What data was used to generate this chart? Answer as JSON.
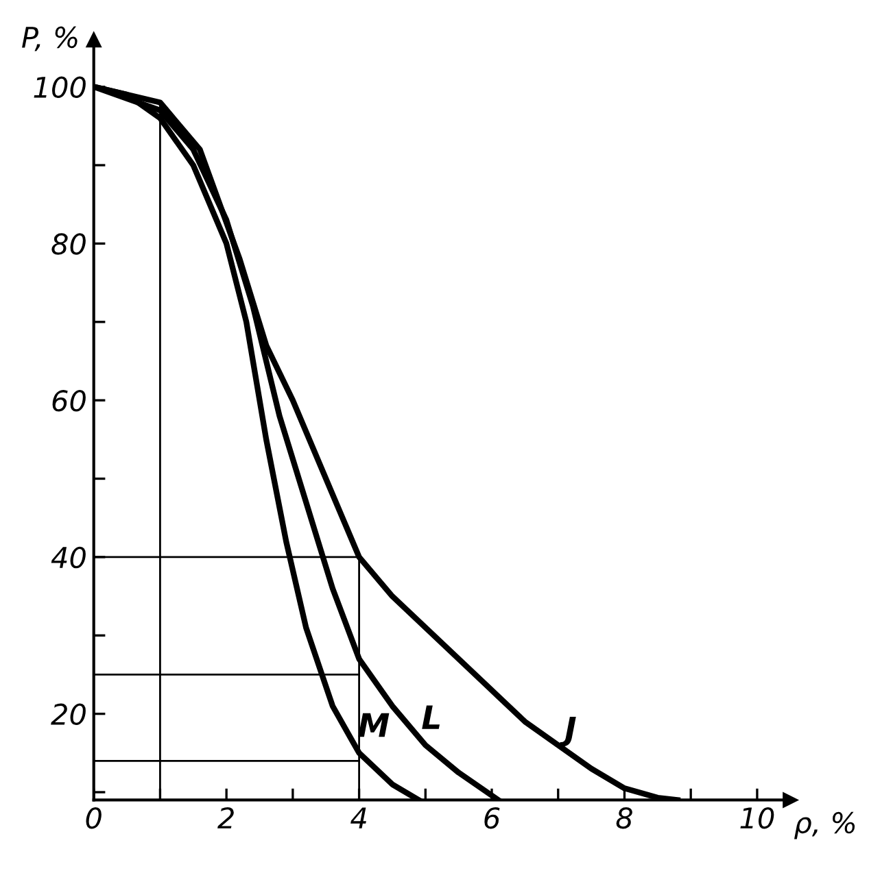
{
  "chart_data": {
    "type": "line",
    "xlabel": "ρ, %",
    "ylabel": "P, %",
    "xlim": [
      0,
      10.5
    ],
    "ylim": [
      9,
      106
    ],
    "xticks": [
      0,
      {
        "value": 1,
        "label": null
      },
      2,
      {
        "value": 3,
        "label": null
      },
      4,
      {
        "value": 5,
        "label": null
      },
      6,
      {
        "value": 7,
        "label": null
      },
      8,
      {
        "value": 9,
        "label": null
      },
      10
    ],
    "yticks": [
      {
        "value": 10,
        "label": null
      },
      20,
      {
        "value": 30,
        "label": null
      },
      40,
      {
        "value": 50,
        "label": null
      },
      60,
      {
        "value": 70,
        "label": null
      },
      80,
      {
        "value": 90,
        "label": null
      },
      100
    ],
    "grid": false,
    "legend": false,
    "marker": "none",
    "line_style": "solid",
    "series": [
      {
        "name": "M",
        "color": "#000000",
        "x": [
          0,
          0.5,
          1,
          1.5,
          2,
          2.3,
          2.6,
          2.9,
          3.2,
          3.6,
          4,
          4.5,
          4.9
        ],
        "values": [
          100,
          99,
          96,
          90,
          80,
          70,
          55,
          42,
          31,
          21,
          15,
          11,
          9
        ]
      },
      {
        "name": "L",
        "color": "#000000",
        "x": [
          0,
          1,
          1.5,
          2,
          2.4,
          2.8,
          3.2,
          3.6,
          4,
          4.5,
          5,
          5.5,
          6.1
        ],
        "values": [
          100,
          97,
          92,
          83,
          72,
          58,
          47,
          36,
          27,
          21,
          16,
          12.5,
          9
        ]
      },
      {
        "name": "J",
        "color": "#000000",
        "x": [
          0,
          1,
          1.6,
          2.2,
          2.6,
          3,
          3.5,
          4,
          4.5,
          5,
          5.5,
          6,
          6.5,
          7,
          7.5,
          8,
          8.5,
          8.8
        ],
        "values": [
          100,
          98,
          92,
          78,
          67,
          60,
          50,
          40,
          35,
          31,
          27,
          23,
          19,
          16,
          13,
          10.5,
          9.3,
          9
        ]
      }
    ],
    "ref_lines": [
      {
        "axis": "x",
        "value": 1,
        "color": "#000000"
      },
      {
        "axis": "x",
        "value": 4,
        "color": "#000000"
      },
      {
        "axis": "y",
        "value": 40,
        "color": "#000000"
      },
      {
        "axis": "y",
        "value": 25,
        "color": "#000000"
      },
      {
        "axis": "y",
        "value": 14,
        "color": "#000000"
      }
    ]
  }
}
